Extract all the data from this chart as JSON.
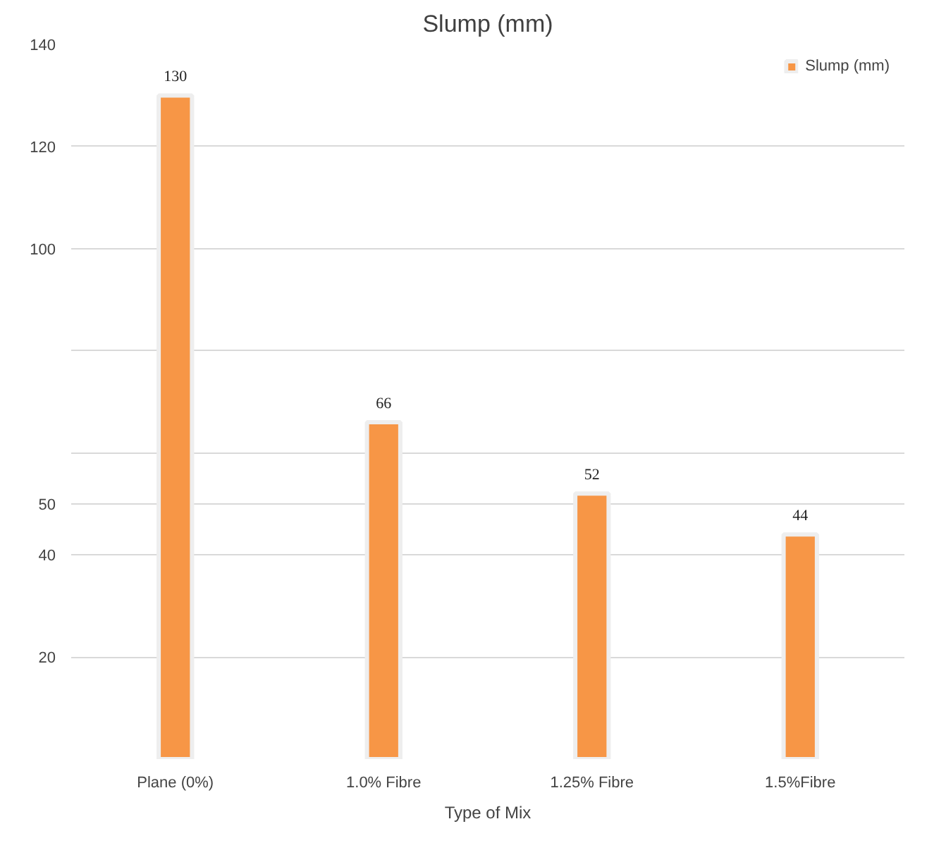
{
  "chart_data": {
    "type": "bar",
    "title": "Slump (mm)",
    "xlabel": "Type of Mix",
    "categories": [
      "Plane (0%)",
      "1.0% Fibre",
      "1.25% Fibre",
      "1.5%Fibre"
    ],
    "series": [
      {
        "name": "Slump (mm)",
        "color": "#f79646",
        "values": [
          130,
          66,
          52,
          44
        ]
      }
    ],
    "ylim": [
      0,
      140
    ],
    "yticks": [
      20,
      40,
      50,
      {
        "value": 60,
        "label": null
      },
      {
        "value": 80,
        "label": null
      },
      100,
      120,
      140
    ],
    "grid": "y",
    "legend": "top right",
    "data_labels": true
  }
}
